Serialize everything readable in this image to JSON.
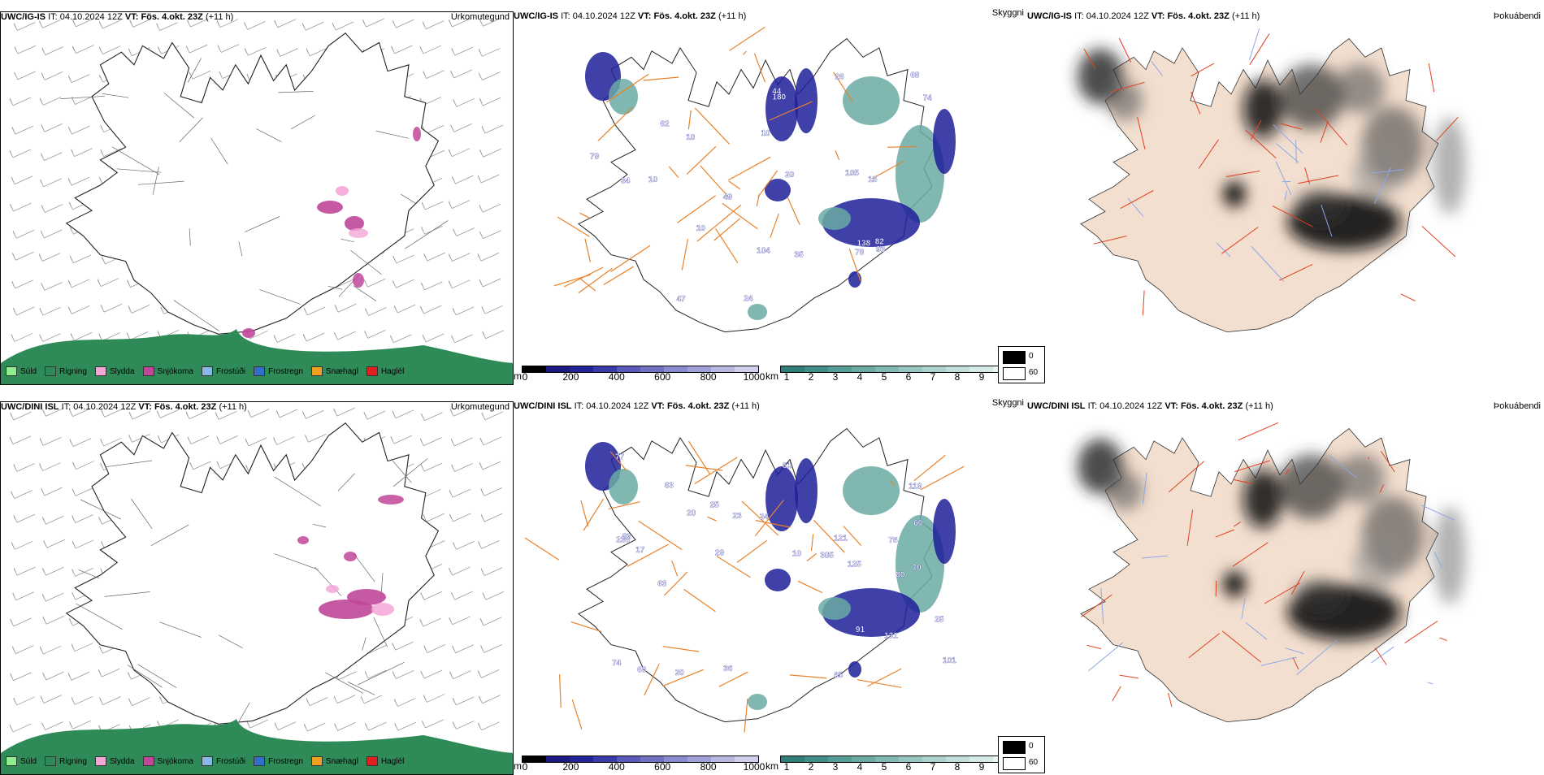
{
  "rows": [
    {
      "model": "UWC/IG-IS",
      "it_label": "IT:",
      "it_value": "04.10.2024 12Z",
      "vt_label": "VT:",
      "vt_value": "Fös. 4.okt. 23Z",
      "lead": "(+11 h)",
      "precip_title": "Úrkomutegund",
      "visibility_title": "Skyggni",
      "fog_title": "Þokuábendi",
      "visibility_labels": [
        "10",
        "62",
        "26",
        "34",
        "74",
        "10",
        "15",
        "20",
        "44",
        "35",
        "49",
        "78",
        "93",
        "138",
        "10",
        "82",
        "79",
        "180",
        "68",
        "104",
        "105",
        "24",
        "10",
        "47"
      ]
    },
    {
      "model": "UWC/DINI ISL",
      "it_label": "IT:",
      "it_value": "04.10.2024 12Z",
      "vt_label": "VT:",
      "vt_value": "Fös. 4.okt. 23Z",
      "lead": "(+11 h)",
      "precip_title": "Úrkomutegund",
      "visibility_title": "Skyggni",
      "fog_title": "Þokuábendi",
      "visibility_labels": [
        "121",
        "61",
        "101",
        "25",
        "36",
        "80",
        "20",
        "305",
        "20",
        "78",
        "85",
        "10",
        "83",
        "131",
        "238",
        "25",
        "23",
        "17",
        "60",
        "91",
        "74",
        "68",
        "63",
        "63",
        "29",
        "77",
        "70",
        "119",
        "125",
        "24"
      ]
    }
  ],
  "precip_legend": [
    {
      "label": "Súld",
      "color": "#90ee90"
    },
    {
      "label": "Rigning",
      "color": "#2e8b57"
    },
    {
      "label": "Slydda",
      "color": "#f4a6d7"
    },
    {
      "label": "Snjókoma",
      "color": "#c0479a"
    },
    {
      "label": "Frostúði",
      "color": "#87b8e8"
    },
    {
      "label": "Frostregn",
      "color": "#2f6fc9"
    },
    {
      "label": "Snæhagl",
      "color": "#f0a020"
    },
    {
      "label": "Haglél",
      "color": "#e02020"
    }
  ],
  "visibility_legend": {
    "unit_m": "m",
    "ticks_m": [
      "0",
      "200",
      "400",
      "600",
      "800",
      "1000"
    ],
    "colors_m": [
      "#000000",
      "#1a1a80",
      "#24249a",
      "#3a3aa8",
      "#5a5ab8",
      "#7070c0",
      "#8a8ad0",
      "#a0a0d8",
      "#b8b8e0",
      "#d0d0ec"
    ],
    "unit_km": "km",
    "ticks_km": [
      "1",
      "2",
      "3",
      "4",
      "5",
      "6",
      "7",
      "8",
      "9",
      "10"
    ],
    "colors_km": [
      "#2f7f78",
      "#3f8f88",
      "#559d96",
      "#6aaaa3",
      "#80b8b2",
      "#96c6c0",
      "#acd2cd",
      "#c2dfdb",
      "#d6ebe8",
      "#ecf6f4"
    ]
  },
  "fog_legend": {
    "low": "0",
    "high": "60"
  },
  "colors": {
    "rain": "#2e8b57",
    "snow": "#c0479a",
    "sleet": "#f4a6d7",
    "vis_dark": "#1f1f9a",
    "vis_teal": "#6aaaa3",
    "road": "#e8822a",
    "land_fog": "#f3dfcf",
    "fog_road": "#e04020",
    "fog_river": "#8ea6e8"
  }
}
